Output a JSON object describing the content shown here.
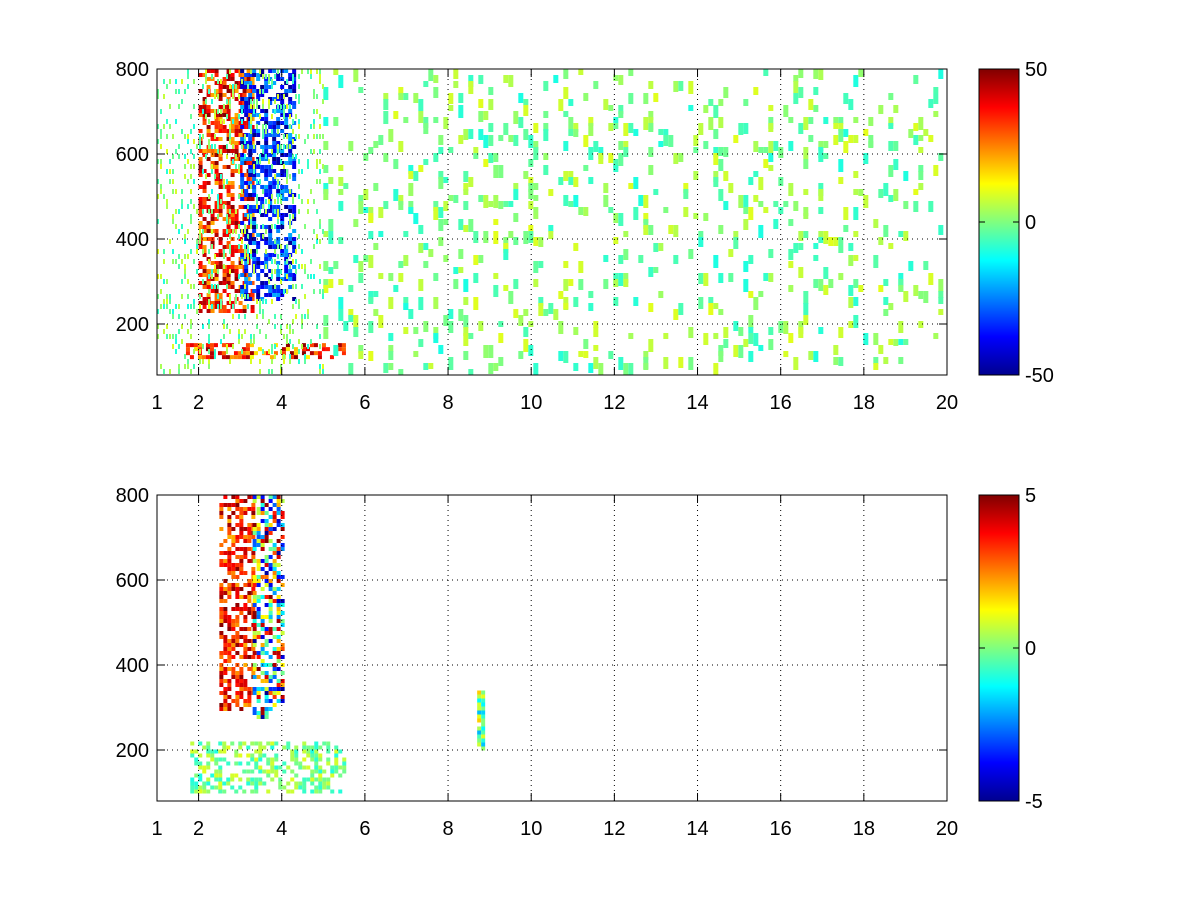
{
  "chart_data": [
    {
      "type": "heatmap",
      "title": "",
      "xlabel": "",
      "ylabel": "",
      "xlim": [
        1,
        20
      ],
      "ylim": [
        80,
        800
      ],
      "grid": true,
      "grid_style": "dotted",
      "x_ticks": [
        1,
        2,
        4,
        6,
        8,
        10,
        12,
        14,
        16,
        18,
        20
      ],
      "x_tick_labels": [
        "1",
        "2",
        "4",
        "6",
        "8",
        "10",
        "12",
        "14",
        "16",
        "18",
        "20"
      ],
      "y_ticks": [
        200,
        400,
        600,
        800
      ],
      "y_tick_labels": [
        "200",
        "400",
        "600",
        "800"
      ],
      "colormap": "jet",
      "colorbar": {
        "min": -50,
        "max": 50,
        "ticks": [
          50,
          0,
          -50
        ],
        "tick_labels": [
          "50",
          "0",
          "-50"
        ],
        "placement": "right"
      },
      "features": [
        {
          "x_range": [
            2.0,
            3.3
          ],
          "y_range": [
            230,
            800
          ],
          "value_range": [
            20,
            50
          ],
          "description": "positive ridge"
        },
        {
          "x_range": [
            3.0,
            4.3
          ],
          "y_range": [
            260,
            800
          ],
          "value_range": [
            -50,
            -20
          ],
          "description": "negative ridge"
        },
        {
          "x_range": [
            1.6,
            5.5
          ],
          "y_range": [
            125,
            155
          ],
          "value_range": [
            10,
            50
          ],
          "description": "horizontal band"
        }
      ],
      "noise_value_range": [
        -10,
        10
      ],
      "noise_x_range": [
        5,
        20
      ]
    },
    {
      "type": "heatmap",
      "title": "",
      "xlabel": "",
      "ylabel": "",
      "xlim": [
        1,
        20
      ],
      "ylim": [
        80,
        800
      ],
      "grid": true,
      "grid_style": "dotted",
      "x_ticks": [
        1,
        2,
        4,
        6,
        8,
        10,
        12,
        14,
        16,
        18,
        20
      ],
      "x_tick_labels": [
        "1",
        "2",
        "4",
        "6",
        "8",
        "10",
        "12",
        "14",
        "16",
        "18",
        "20"
      ],
      "y_ticks": [
        200,
        400,
        600,
        800
      ],
      "y_tick_labels": [
        "200",
        "400",
        "600",
        "800"
      ],
      "colormap": "jet",
      "colorbar": {
        "min": -5,
        "max": 5,
        "ticks": [
          5,
          0,
          -5
        ],
        "tick_labels": [
          "5",
          "0",
          "-5"
        ],
        "placement": "right"
      },
      "features": [
        {
          "x_range": [
            2.5,
            3.3
          ],
          "y_range": [
            300,
            800
          ],
          "value_range": [
            2,
            5
          ],
          "description": "positive ridge"
        },
        {
          "x_range": [
            3.3,
            4.0
          ],
          "y_range": [
            280,
            800
          ],
          "value_range": [
            -5,
            5
          ],
          "description": "mixed ridge"
        },
        {
          "x_range": [
            1.8,
            5.5
          ],
          "y_range": [
            100,
            220
          ],
          "value_range": [
            -1,
            1
          ],
          "description": "low band"
        },
        {
          "x_range": [
            8.7,
            8.8
          ],
          "y_range": [
            200,
            340
          ],
          "value_range": [
            -2,
            2
          ],
          "description": "isolated column"
        }
      ]
    }
  ],
  "colors": {
    "axes": "#000000",
    "grid": "#000000",
    "background": "#ffffff"
  }
}
